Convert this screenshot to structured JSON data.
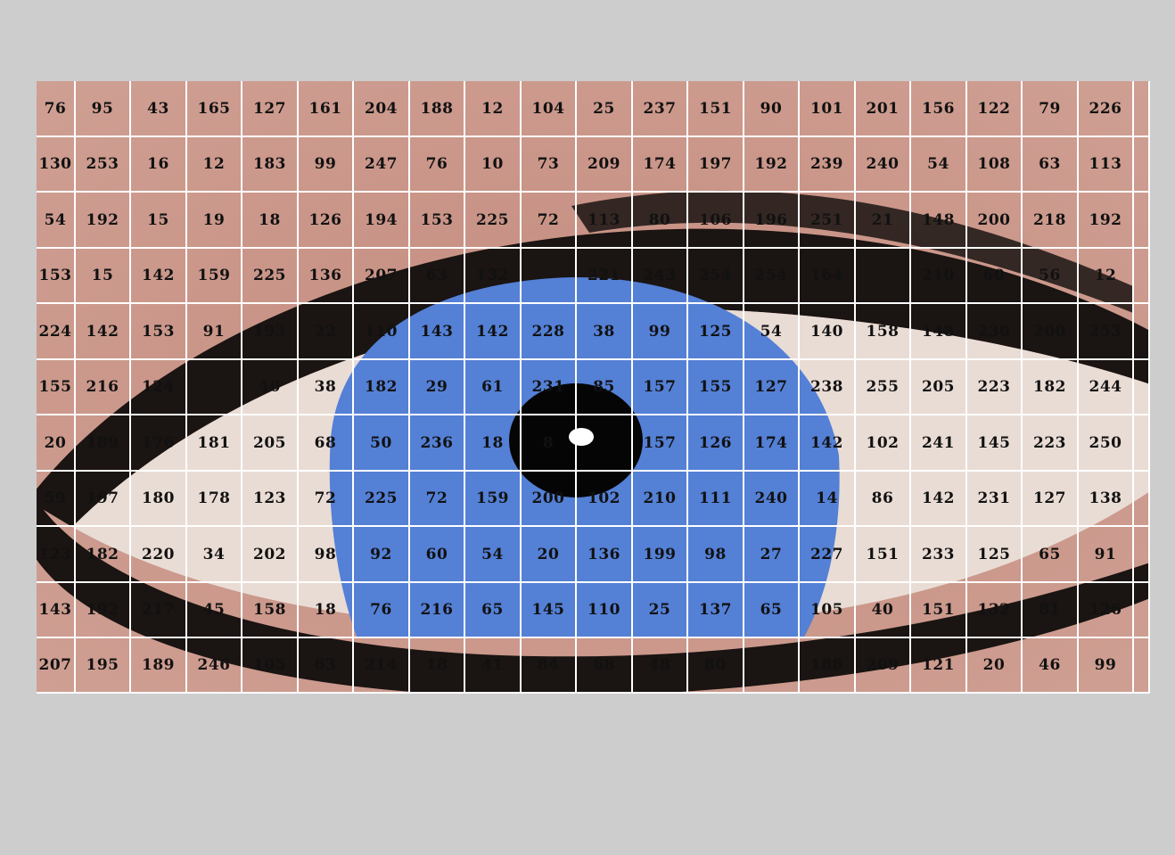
{
  "colors": {
    "background": "#cdcdcd",
    "skin": "#c08a7c",
    "skin_light": "#d6a79b",
    "eye_white": "#e9dcd5",
    "iris": "#5480d6",
    "pupil": "#050505",
    "lash": "#1a1412",
    "grid_line": "#ffffff",
    "number_text": "#111111"
  },
  "grid": {
    "rows": [
      [
        "76",
        "95",
        "43",
        "165",
        "127",
        "161",
        "204",
        "188",
        "12",
        "104",
        "25",
        "237",
        "151",
        "90",
        "101",
        "201",
        "156",
        "122",
        "79",
        "226"
      ],
      [
        "130",
        "253",
        "16",
        "12",
        "183",
        "99",
        "247",
        "76",
        "10",
        "73",
        "209",
        "174",
        "197",
        "192",
        "239",
        "240",
        "54",
        "108",
        "63",
        "113"
      ],
      [
        "54",
        "192",
        "15",
        "19",
        "18",
        "126",
        "194",
        "153",
        "225",
        "72",
        "113",
        "80",
        "106",
        "196",
        "251",
        "21",
        "148",
        "200",
        "218",
        "192"
      ],
      [
        "153",
        "15",
        "142",
        "159",
        "225",
        "136",
        "207",
        "63",
        "132",
        "",
        "221",
        "243",
        "254",
        "254",
        "164",
        "",
        "210",
        "60",
        "56",
        "12"
      ],
      [
        "224",
        "142",
        "153",
        "91",
        "193",
        "22",
        "110",
        "143",
        "142",
        "228",
        "38",
        "99",
        "125",
        "54",
        "140",
        "158",
        "148",
        "230",
        "200",
        "253"
      ],
      [
        "155",
        "216",
        "124",
        "",
        "40",
        "38",
        "182",
        "29",
        "61",
        "231",
        "85",
        "157",
        "155",
        "127",
        "238",
        "255",
        "205",
        "223",
        "182",
        "244"
      ],
      [
        "20",
        "189",
        "176",
        "181",
        "205",
        "68",
        "50",
        "236",
        "18",
        "8",
        "",
        "157",
        "126",
        "174",
        "142",
        "102",
        "241",
        "145",
        "223",
        "250"
      ],
      [
        "59",
        "197",
        "180",
        "178",
        "123",
        "72",
        "225",
        "72",
        "159",
        "200",
        "102",
        "210",
        "111",
        "240",
        "14",
        "86",
        "142",
        "231",
        "127",
        "138"
      ],
      [
        "123",
        "182",
        "220",
        "34",
        "202",
        "98",
        "92",
        "60",
        "54",
        "20",
        "136",
        "199",
        "98",
        "27",
        "227",
        "151",
        "233",
        "125",
        "65",
        "91"
      ],
      [
        "143",
        "192",
        "217",
        "45",
        "158",
        "18",
        "76",
        "216",
        "65",
        "145",
        "110",
        "25",
        "137",
        "65",
        "105",
        "40",
        "151",
        "132",
        "81",
        "126"
      ],
      [
        "207",
        "195",
        "189",
        "246",
        "105",
        "63",
        "214",
        "18",
        "41",
        "84",
        "68",
        "48",
        "80",
        "",
        "188",
        "209",
        "121",
        "20",
        "46",
        "99"
      ]
    ]
  }
}
